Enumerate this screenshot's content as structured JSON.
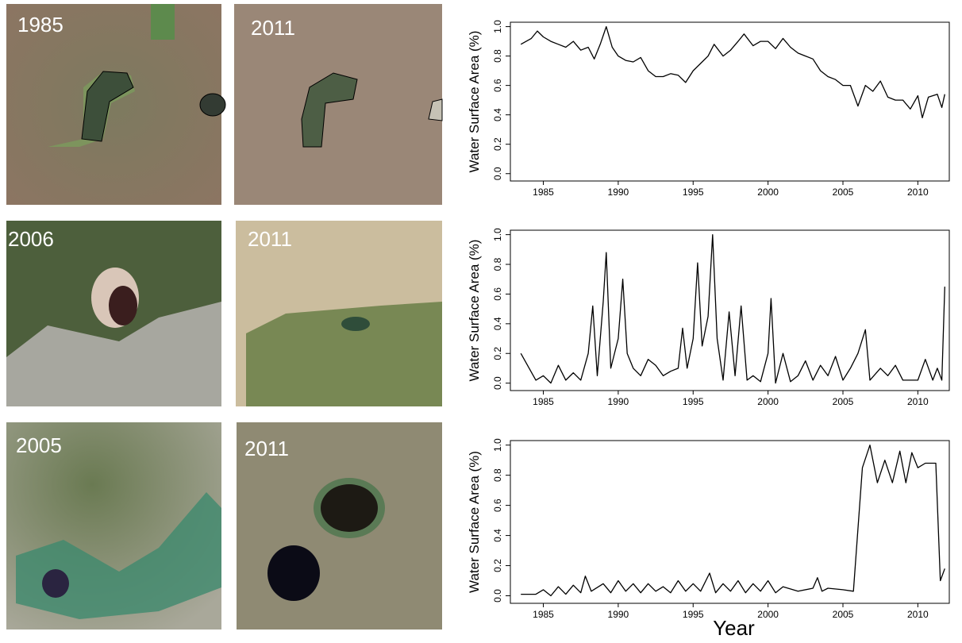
{
  "panels": [
    {
      "label": "1985"
    },
    {
      "label": "2011"
    },
    {
      "label": "2006"
    },
    {
      "label": "2011"
    },
    {
      "label": "2005"
    },
    {
      "label": "2011"
    }
  ],
  "chart_data": [
    {
      "type": "line",
      "ylabel": "Water Surface Area (%)",
      "xlim": [
        1982.8,
        2012.1
      ],
      "ylim": [
        -0.05,
        1.03
      ],
      "xticks": [
        1985,
        1990,
        1995,
        2000,
        2005,
        2010
      ],
      "yticks": [
        {
          "value": 0,
          "label": "0.0"
        },
        0.2,
        0.4,
        0.6,
        0.8,
        {
          "value": 1,
          "label": "1.0"
        }
      ],
      "series": [
        {
          "color": "#000000",
          "x": [
            1983.5,
            1984.2,
            1984.6,
            1985,
            1985.5,
            1986,
            1986.5,
            1987,
            1987.5,
            1988,
            1988.4,
            1988.8,
            1989.2,
            1989.6,
            1990,
            1990.5,
            1991,
            1991.5,
            1992,
            1992.5,
            1993,
            1993.5,
            1994,
            1994.5,
            1995,
            1995.5,
            1996,
            1996.4,
            1997,
            1997.5,
            1998,
            1998.4,
            1999,
            1999.5,
            2000,
            2000.5,
            2001,
            2001.5,
            2002,
            2002.5,
            2003,
            2003.5,
            2004,
            2004.5,
            2005,
            2005.5,
            2006,
            2006.5,
            2007,
            2007.5,
            2008,
            2008.5,
            2009,
            2009.5,
            2010,
            2010.3,
            2010.7,
            2011.3,
            2011.6,
            2011.8
          ],
          "values": [
            0.88,
            0.92,
            0.97,
            0.93,
            0.9,
            0.88,
            0.86,
            0.9,
            0.84,
            0.86,
            0.78,
            0.88,
            1.0,
            0.86,
            0.8,
            0.77,
            0.76,
            0.79,
            0.7,
            0.66,
            0.66,
            0.68,
            0.67,
            0.62,
            0.7,
            0.75,
            0.8,
            0.88,
            0.8,
            0.84,
            0.9,
            0.95,
            0.87,
            0.9,
            0.9,
            0.85,
            0.92,
            0.86,
            0.82,
            0.8,
            0.78,
            0.7,
            0.66,
            0.64,
            0.6,
            0.6,
            0.46,
            0.6,
            0.56,
            0.63,
            0.52,
            0.5,
            0.5,
            0.44,
            0.53,
            0.38,
            0.52,
            0.54,
            0.45,
            0.54
          ]
        }
      ]
    },
    {
      "type": "line",
      "ylabel": "Water Surface Area (%)",
      "xlim": [
        1982.8,
        2012.1
      ],
      "ylim": [
        -0.05,
        1.03
      ],
      "xticks": [
        1985,
        1990,
        1995,
        2000,
        2005,
        2010
      ],
      "yticks": [
        {
          "value": 0,
          "label": "0.0"
        },
        0.2,
        0.4,
        0.6,
        0.8,
        {
          "value": 1,
          "label": "1.0"
        }
      ],
      "series": [
        {
          "color": "#000000",
          "x": [
            1983.5,
            1984.5,
            1985,
            1985.5,
            1986,
            1986.5,
            1987,
            1987.5,
            1988,
            1988.3,
            1988.6,
            1989,
            1989.2,
            1989.5,
            1990,
            1990.3,
            1990.6,
            1991,
            1991.5,
            1992,
            1992.5,
            1993,
            1993.5,
            1994,
            1994.3,
            1994.6,
            1995,
            1995.3,
            1995.6,
            1996,
            1996.3,
            1996.6,
            1997,
            1997.4,
            1997.8,
            1998.2,
            1998.6,
            1999,
            1999.5,
            2000,
            2000.2,
            2000.5,
            2001,
            2001.5,
            2002,
            2002.5,
            2003,
            2003.5,
            2004,
            2004.5,
            2005,
            2005.5,
            2006,
            2006.5,
            2006.8,
            2007.5,
            2008,
            2008.5,
            2009,
            2010,
            2010.5,
            2011,
            2011.3,
            2011.6,
            2011.8
          ],
          "values": [
            0.2,
            0.02,
            0.05,
            0.0,
            0.12,
            0.02,
            0.07,
            0.02,
            0.2,
            0.52,
            0.05,
            0.55,
            0.88,
            0.1,
            0.3,
            0.7,
            0.2,
            0.1,
            0.05,
            0.16,
            0.12,
            0.05,
            0.08,
            0.1,
            0.37,
            0.1,
            0.3,
            0.81,
            0.25,
            0.45,
            1.0,
            0.3,
            0.02,
            0.48,
            0.05,
            0.52,
            0.02,
            0.05,
            0.01,
            0.2,
            0.57,
            0.0,
            0.2,
            0.01,
            0.05,
            0.15,
            0.02,
            0.12,
            0.05,
            0.18,
            0.02,
            0.1,
            0.2,
            0.36,
            0.02,
            0.1,
            0.05,
            0.12,
            0.02,
            0.02,
            0.16,
            0.02,
            0.1,
            0.02,
            0.65
          ]
        }
      ]
    },
    {
      "type": "line",
      "ylabel": "Water Surface Area (%)",
      "xlabel": "Year",
      "xlim": [
        1982.8,
        2012.1
      ],
      "ylim": [
        -0.05,
        1.03
      ],
      "xticks": [
        1985,
        1990,
        1995,
        2000,
        2005,
        2010
      ],
      "yticks": [
        {
          "value": 0,
          "label": "0.0"
        },
        0.2,
        0.4,
        0.6,
        0.8,
        {
          "value": 1,
          "label": "1.0"
        }
      ],
      "series": [
        {
          "color": "#000000",
          "x": [
            1983.5,
            1984.5,
            1985,
            1985.5,
            1986,
            1986.5,
            1987,
            1987.5,
            1987.8,
            1988.2,
            1989,
            1989.5,
            1990,
            1990.5,
            1991,
            1991.5,
            1992,
            1992.5,
            1993,
            1993.5,
            1994,
            1994.5,
            1995,
            1995.5,
            1996.1,
            1996.5,
            1997,
            1997.5,
            1998,
            1998.5,
            1999,
            1999.5,
            2000,
            2000.5,
            2001,
            2002,
            2003,
            2003.3,
            2003.6,
            2004,
            2005,
            2005.7,
            2006.3,
            2006.8,
            2007.3,
            2007.8,
            2008.3,
            2008.8,
            2009.2,
            2009.6,
            2010,
            2010.5,
            2011.2,
            2011.5,
            2011.8
          ],
          "values": [
            0.01,
            0.01,
            0.04,
            0.0,
            0.06,
            0.01,
            0.07,
            0.02,
            0.13,
            0.03,
            0.08,
            0.02,
            0.1,
            0.03,
            0.08,
            0.02,
            0.08,
            0.03,
            0.06,
            0.02,
            0.1,
            0.03,
            0.08,
            0.03,
            0.15,
            0.02,
            0.08,
            0.03,
            0.1,
            0.02,
            0.08,
            0.03,
            0.1,
            0.02,
            0.06,
            0.03,
            0.05,
            0.12,
            0.03,
            0.05,
            0.04,
            0.03,
            0.85,
            1.0,
            0.75,
            0.9,
            0.75,
            0.96,
            0.75,
            0.95,
            0.85,
            0.88,
            0.88,
            0.1,
            0.18
          ]
        }
      ]
    }
  ]
}
